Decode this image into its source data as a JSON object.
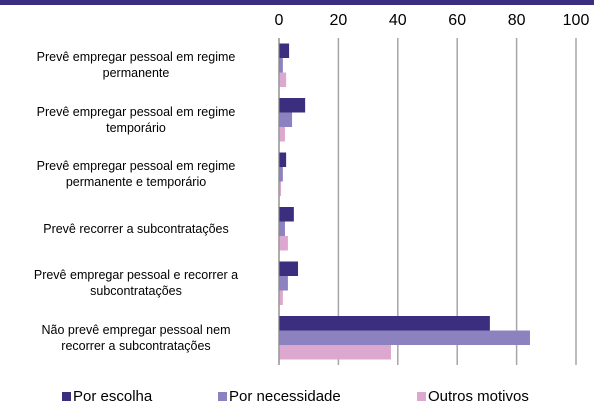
{
  "chart_data": {
    "type": "barh",
    "categories": [
      "Prevê empregar pessoal em regime\npermanente",
      "Prevê empregar pessoal em regime\ntemporário",
      "Prevê empregar pessoal em regime\npermanente e temporário",
      "Prevê recorrer a subcontratações",
      "Prevê empregar pessoal e recorrer a\nsubcontratações",
      "Não prevê empregar pessoal nem\nrecorrer a subcontratações"
    ],
    "series": [
      {
        "name": "Por escolha",
        "color": "#3b2e7e",
        "values": [
          3.4,
          8.8,
          2.4,
          5,
          6.4,
          71
        ]
      },
      {
        "name": "Por necessidade",
        "color": "#8c82c0",
        "values": [
          1.3,
          4.4,
          1.3,
          2,
          3,
          84.5
        ]
      },
      {
        "name": "Outros motivos",
        "color": "#dca8d0",
        "values": [
          2.4,
          2,
          0.7,
          3,
          1.3,
          37.7
        ]
      }
    ],
    "xlim": [
      0,
      100
    ],
    "xticks": [
      0,
      20,
      40,
      60,
      80,
      100
    ],
    "grid": true,
    "legend": "bottom"
  }
}
